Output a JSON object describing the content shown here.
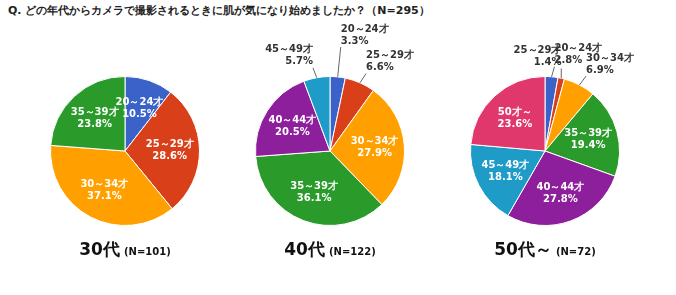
{
  "title": "Q. どの年代からカメラで撮影されるときに肌が気になり始めましたか？（N=295）",
  "chart_data": [
    {
      "type": "pie",
      "title": "30代",
      "subtitle": "(N=101)",
      "categories": [
        "20～24才",
        "25～29才",
        "30～34才",
        "35～39才"
      ],
      "values": [
        10.5,
        28.6,
        37.1,
        23.8
      ],
      "value_labels": [
        "10.5%",
        "28.6%",
        "37.1%",
        "23.8%"
      ],
      "colors": [
        "#3a62c9",
        "#d9401a",
        "#ffa000",
        "#2a9b2a"
      ],
      "data_labels": true
    },
    {
      "type": "pie",
      "title": "40代",
      "subtitle": "(N=122)",
      "categories": [
        "20～24才",
        "25～29才",
        "30～34才",
        "35～39才",
        "40～44才",
        "45～49才"
      ],
      "values": [
        3.3,
        6.6,
        27.9,
        36.1,
        20.5,
        5.7
      ],
      "value_labels": [
        "3.3%",
        "6.6%",
        "27.9%",
        "36.1%",
        "20.5%",
        "5.7%"
      ],
      "colors": [
        "#3a62c9",
        "#d9401a",
        "#ffa000",
        "#2a9b2a",
        "#8e1f9c",
        "#1f9bc8"
      ],
      "data_labels": true
    },
    {
      "type": "pie",
      "title": "50代～",
      "subtitle": "(N=72)",
      "categories": [
        "20～24才",
        "25～29才",
        "30～34才",
        "35～39才",
        "40～44才",
        "45～49才",
        "50才～"
      ],
      "values": [
        2.8,
        1.4,
        6.9,
        19.4,
        27.8,
        18.1,
        23.6
      ],
      "value_labels": [
        "2.8%",
        "1.4%",
        "6.9%",
        "19.4%",
        "27.8%",
        "18.1%",
        "23.6%"
      ],
      "colors": [
        "#3a62c9",
        "#d9401a",
        "#ffa000",
        "#2a9b2a",
        "#8e1f9c",
        "#1f9bc8",
        "#e0386c"
      ],
      "data_labels": true
    }
  ]
}
